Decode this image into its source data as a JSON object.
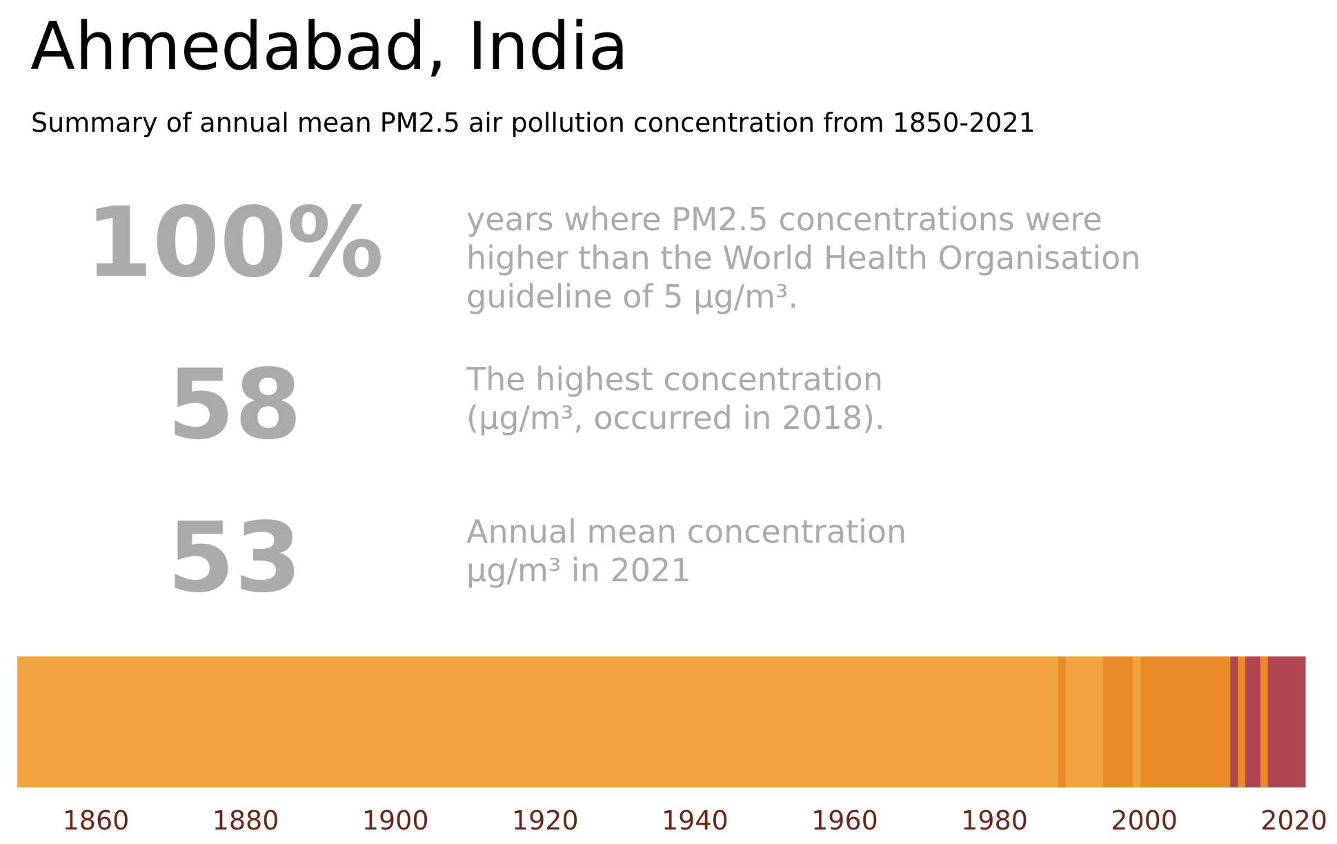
{
  "title": "Ahmedabad, India",
  "subtitle": "Summary of annual mean PM2.5 air pollution concentration from 1850-2021",
  "stats": [
    {
      "value": "100%",
      "lines": [
        "years where PM2.5 concentrations were",
        "higher than the World Health Organisation",
        "guideline of 5 µg/m³."
      ]
    },
    {
      "value": "58",
      "lines": [
        "The highest concentration",
        "(µg/m³, occurred in 2018)."
      ]
    },
    {
      "value": "53",
      "lines": [
        "Annual mean concentration",
        "µg/m³ in 2021"
      ]
    }
  ],
  "colors": {
    "stat_text": "#aaaaaa",
    "tick_label": "#6b2418"
  },
  "chart_data": {
    "type": "heatmap",
    "title": "",
    "xlabel": "",
    "ylabel": "",
    "xlim": [
      1849.5,
      2021.5
    ],
    "x_ticks": [
      1860,
      1880,
      1900,
      1920,
      1940,
      1960,
      1980,
      2000,
      2020
    ],
    "grid": false,
    "legend": "none",
    "segments": [
      {
        "start": 1850,
        "end": 1988,
        "color": "#f0a540"
      },
      {
        "start": 1989,
        "end": 1989,
        "color": "#ea8b2a"
      },
      {
        "start": 1990,
        "end": 1994,
        "color": "#f0a540"
      },
      {
        "start": 1995,
        "end": 1998,
        "color": "#ea8b2a"
      },
      {
        "start": 1999,
        "end": 1999,
        "color": "#f0a540"
      },
      {
        "start": 2000,
        "end": 2011,
        "color": "#ea8b2a"
      },
      {
        "start": 2012,
        "end": 2012,
        "color": "#b04651"
      },
      {
        "start": 2013,
        "end": 2013,
        "color": "#ea8b2a"
      },
      {
        "start": 2014,
        "end": 2015,
        "color": "#b04651"
      },
      {
        "start": 2016,
        "end": 2016,
        "color": "#ea8b2a"
      },
      {
        "start": 2017,
        "end": 2021,
        "color": "#b04651"
      }
    ]
  }
}
